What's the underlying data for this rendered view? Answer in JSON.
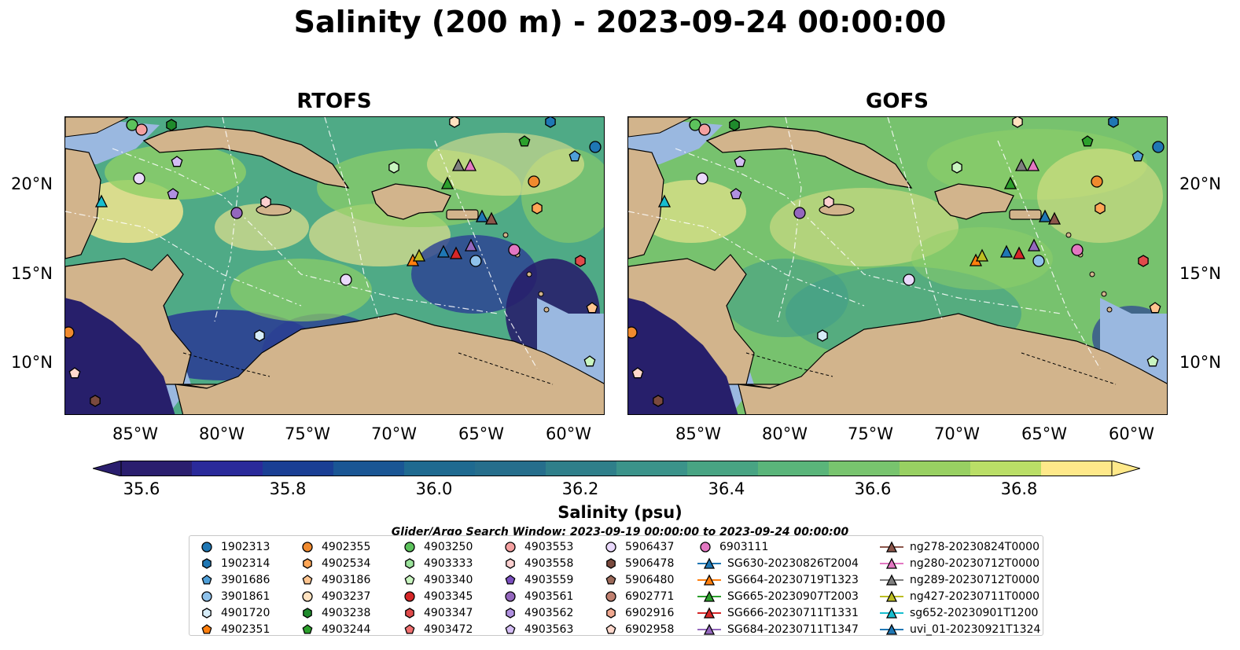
{
  "title": "Salinity (200 m) - 2023-09-24 00:00:00",
  "panels": [
    {
      "title": "RTOFS",
      "lat_labels_side": "left"
    },
    {
      "title": "GOFS",
      "lat_labels_side": "right"
    }
  ],
  "axes": {
    "lat_labels": [
      "20°N",
      "15°N",
      "10°N"
    ],
    "lon_labels": [
      "85°W",
      "80°W",
      "75°W",
      "70°W",
      "65°W",
      "60°W"
    ]
  },
  "colorbar": {
    "label": "Salinity (psu)",
    "ticks": [
      "35.6",
      "35.8",
      "36.0",
      "36.2",
      "36.4",
      "36.6",
      "36.8"
    ],
    "colors": [
      "#2a1e6e",
      "#2a2a9a",
      "#1a3f94",
      "#1a5694",
      "#1f6a90",
      "#266e8c",
      "#2f7f8a",
      "#3b938a",
      "#48a483",
      "#5ab57a",
      "#78c46e",
      "#98d062",
      "#bade67",
      "#ffe98a"
    ],
    "extend": "both"
  },
  "search_window": "Glider/Argo Search Window: 2023-09-19 00:00:00 to 2023-09-24 00:00:00",
  "legend": [
    {
      "label": "1902313",
      "marker": "circle",
      "color": "#1f77b4"
    },
    {
      "label": "1902314",
      "marker": "hexagon",
      "color": "#1f77b4"
    },
    {
      "label": "3901686",
      "marker": "pentagon",
      "color": "#4f9fd8"
    },
    {
      "label": "3901861",
      "marker": "circle",
      "color": "#8ec1ea"
    },
    {
      "label": "4901720",
      "marker": "hexagon",
      "color": "#d6ecf8"
    },
    {
      "label": "4902351",
      "marker": "pentagon",
      "color": "#ff7f0e"
    },
    {
      "label": "4902355",
      "marker": "circle",
      "color": "#f08a2e"
    },
    {
      "label": "4902534",
      "marker": "hexagon",
      "color": "#ffa656"
    },
    {
      "label": "4903186",
      "marker": "pentagon",
      "color": "#ffc590"
    },
    {
      "label": "4903237",
      "marker": "circle",
      "color": "#ffe2c0"
    },
    {
      "label": "4903238",
      "marker": "hexagon",
      "color": "#1f8b2c"
    },
    {
      "label": "4903244",
      "marker": "pentagon",
      "color": "#2ca02c"
    },
    {
      "label": "4903250",
      "marker": "circle",
      "color": "#5cc25c"
    },
    {
      "label": "4903333",
      "marker": "hexagon",
      "color": "#9be39b"
    },
    {
      "label": "4903340",
      "marker": "pentagon",
      "color": "#c9f5c0"
    },
    {
      "label": "4903345",
      "marker": "circle",
      "color": "#d62728"
    },
    {
      "label": "4903347",
      "marker": "hexagon",
      "color": "#e04b4b"
    },
    {
      "label": "4903472",
      "marker": "pentagon",
      "color": "#f07070"
    },
    {
      "label": "4903553",
      "marker": "circle",
      "color": "#f4a0a0"
    },
    {
      "label": "4903558",
      "marker": "hexagon",
      "color": "#fcd0d0"
    },
    {
      "label": "4903559",
      "marker": "pentagon",
      "color": "#7b4fbf"
    },
    {
      "label": "4903561",
      "marker": "circle",
      "color": "#9467bd"
    },
    {
      "label": "4903562",
      "marker": "hexagon",
      "color": "#b090e0"
    },
    {
      "label": "4903563",
      "marker": "pentagon",
      "color": "#d4bdf4"
    },
    {
      "label": "5906437",
      "marker": "circle",
      "color": "#ead9fc"
    },
    {
      "label": "5906478",
      "marker": "hexagon",
      "color": "#7a4a3e"
    },
    {
      "label": "5906480",
      "marker": "pentagon",
      "color": "#9c6a5a"
    },
    {
      "label": "6902771",
      "marker": "circle",
      "color": "#c08070"
    },
    {
      "label": "6902916",
      "marker": "hexagon",
      "color": "#f0a890"
    },
    {
      "label": "6902958",
      "marker": "pentagon",
      "color": "#ffd8cc"
    },
    {
      "label": "6903111",
      "marker": "circle",
      "color": "#e377c2"
    },
    {
      "label": "SG630-20230826T2004",
      "marker": "triangle-line",
      "color": "#1f77b4"
    },
    {
      "label": "SG664-20230719T1323",
      "marker": "triangle-line",
      "color": "#ff7f0e"
    },
    {
      "label": "SG665-20230907T2003",
      "marker": "triangle-line",
      "color": "#2ca02c"
    },
    {
      "label": "SG666-20230711T1331",
      "marker": "triangle-line",
      "color": "#d62728"
    },
    {
      "label": "SG684-20230711T1347",
      "marker": "triangle-line",
      "color": "#9467bd"
    },
    {
      "label": "ng278-20230824T0000",
      "marker": "triangle-line",
      "color": "#8c564b"
    },
    {
      "label": "ng280-20230712T0000",
      "marker": "triangle-line",
      "color": "#e377c2"
    },
    {
      "label": "ng289-20230712T0000",
      "marker": "triangle-line",
      "color": "#7f7f7f"
    },
    {
      "label": "ng427-20230711T0000",
      "marker": "triangle-line",
      "color": "#bcbd22"
    },
    {
      "label": "sg652-20230901T1200",
      "marker": "triangle-line",
      "color": "#17becf"
    },
    {
      "label": "uvi_01-20230921T1324",
      "marker": "triangle-line",
      "color": "#1f77b4"
    }
  ],
  "map_colors": {
    "land": "#d2b48c",
    "shelf": "#9ab8e0",
    "deep_low": "#271f6b",
    "low": "#2b3f94",
    "mid": "#3f9c8a",
    "high": "#8fcf67",
    "max": "#fbe98f"
  },
  "panel_bases": [
    "#4faa86",
    "#77c26e"
  ]
}
